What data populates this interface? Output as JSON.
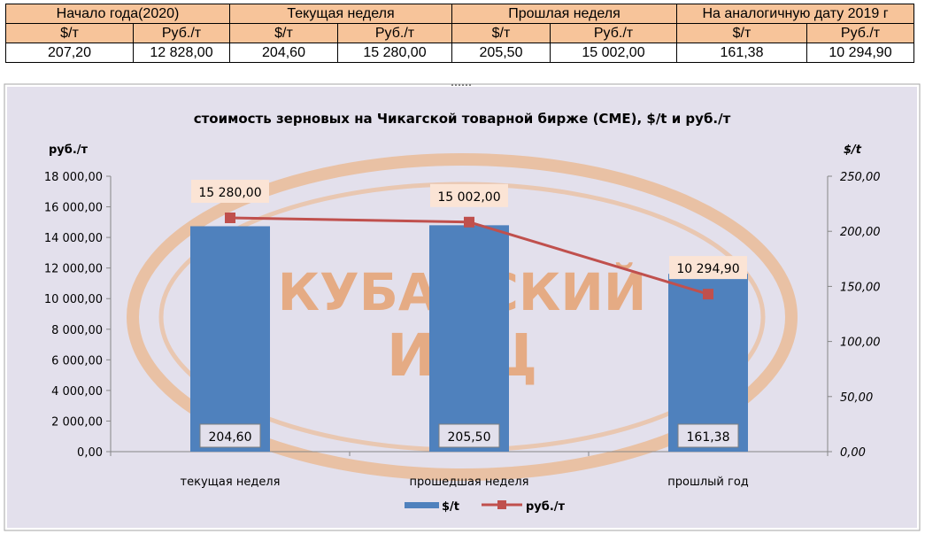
{
  "table": {
    "groups": [
      "Начало года(2020)",
      "Текущая неделя",
      "Прошлая неделя",
      "На аналогичную дату 2019 г"
    ],
    "subheaders": [
      "$/т",
      "Руб./т",
      "$/т",
      "Руб./т",
      "$/т",
      "Руб./т",
      "$/т",
      "Руб./т"
    ],
    "values": [
      "207,20",
      "12 828,00",
      "204,60",
      "15 280,00",
      "205,50",
      "15 002,00",
      "161,38",
      "10 294,90"
    ]
  },
  "chart_data": {
    "type": "bar+line",
    "title": "стоимость зерновых на Чикагской товарной бирже (СМЕ), $/t и руб./т",
    "categories": [
      "текущая неделя",
      "прошедшая неделя",
      "прошлый год"
    ],
    "series": [
      {
        "name": "$/t",
        "type": "bar",
        "axis": "right",
        "values": [
          204.6,
          205.5,
          161.38
        ],
        "labels": [
          "204,60",
          "205,50",
          "161,38"
        ]
      },
      {
        "name": "руб./т",
        "type": "line",
        "axis": "left",
        "values": [
          15280.0,
          15002.0,
          10294.9
        ],
        "labels": [
          "15 280,00",
          "15 002,00",
          "10 294,90"
        ]
      }
    ],
    "y_left": {
      "label": "руб./т",
      "min": 0,
      "max": 18000,
      "ticks": [
        "0,00",
        "2 000,00",
        "4 000,00",
        "6 000,00",
        "8 000,00",
        "10 000,00",
        "12 000,00",
        "14 000,00",
        "16 000,00",
        "18 000,00"
      ]
    },
    "y_right": {
      "label": "$/t",
      "min": 0,
      "max": 250,
      "ticks": [
        "0,00",
        "50,00",
        "100,00",
        "150,00",
        "200,00",
        "250,00"
      ]
    },
    "legend": "bottom",
    "grid": false,
    "watermark": "КУБАНСКИЙ ИКЦ",
    "colors": {
      "bar": "#4f81bd",
      "line": "#c0504d",
      "marker": "#c0504d",
      "plot_bg": "#e3e0ec",
      "label_bg": "#fbe4d5",
      "watermark": "#efa86a",
      "watermark_text": "#e88030"
    }
  }
}
